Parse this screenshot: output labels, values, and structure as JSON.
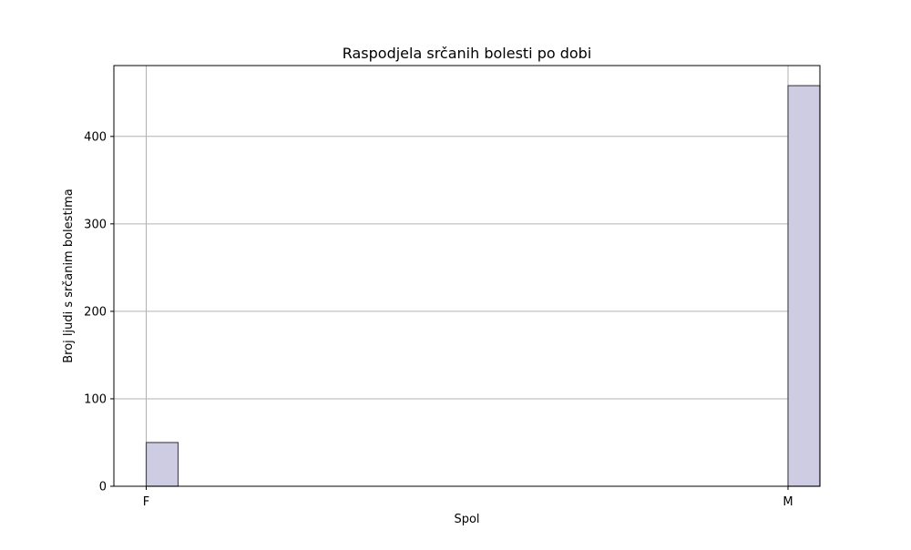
{
  "chart_data": {
    "type": "bar",
    "title": "Raspodjela srčanih bolesti po dobi",
    "xlabel": "Spol",
    "ylabel": "Broj ljudi s srčanim bolestima",
    "categories": [
      "F",
      "M"
    ],
    "values": [
      50,
      458
    ],
    "ylim": [
      0,
      481
    ],
    "yticks": [
      0,
      100,
      200,
      300,
      400
    ],
    "grid": true,
    "legend": "none",
    "bar_color": "#cdcce3",
    "bar_edge_color": "#4a4a55",
    "grid_color": "#b0b0b0"
  }
}
